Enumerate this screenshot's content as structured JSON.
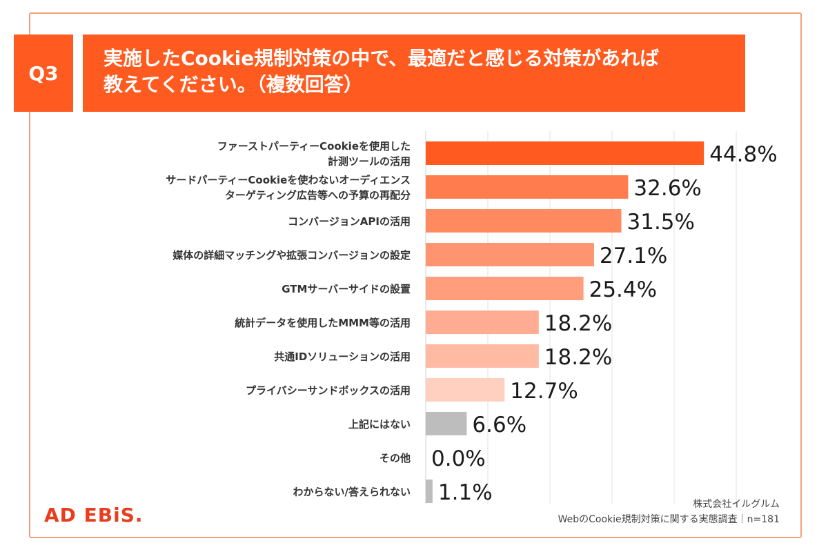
{
  "question": {
    "badge": "Q3",
    "title_line1": "実施したCookie規制対策の中で、最適だと感じる対策があれば",
    "title_line2": "教えてください。（複数回答）"
  },
  "chart_data": {
    "type": "bar",
    "orientation": "horizontal",
    "categories": [
      [
        "ファーストパーティーCookieを使用した",
        "計測ツールの活用"
      ],
      [
        "サードパーティーCookieを使わないオーディエンス",
        "ターゲティング広告等への予算の再配分"
      ],
      [
        "コンバージョンAPIの活用"
      ],
      [
        "媒体の詳細マッチングや拡張コンバージョンの設定"
      ],
      [
        "GTMサーバーサイドの設置"
      ],
      [
        "統計データを使用したMMM等の活用"
      ],
      [
        "共通IDソリューションの活用"
      ],
      [
        "プライバシーサンドボックスの活用"
      ],
      [
        "上記にはない"
      ],
      [
        "その他"
      ],
      [
        "わからない/答えられない"
      ]
    ],
    "values": [
      44.8,
      32.6,
      31.5,
      27.1,
      25.4,
      18.2,
      18.2,
      12.7,
      6.6,
      0.0,
      1.1
    ],
    "value_labels": [
      "44.8%",
      "32.6%",
      "31.5%",
      "27.1%",
      "25.4%",
      "18.2%",
      "18.2%",
      "12.7%",
      "6.6%",
      "0.0%",
      "1.1%"
    ],
    "bar_colors": [
      "#ff5a1f",
      "#ff7c4e",
      "#ff8a60",
      "#ff9470",
      "#ff9d7c",
      "#ffac92",
      "#ffbaa4",
      "#ffcfc0",
      "#bdbdbd",
      "#bdbdbd",
      "#bdbdbd"
    ],
    "xlim": [
      0,
      50
    ],
    "grid": true
  },
  "footer": {
    "brand": "AD EBiS.",
    "source_line1": "株式会社イルグルム",
    "source_line2": "WebのCookie規制対策に関する実態調査｜n=181"
  }
}
